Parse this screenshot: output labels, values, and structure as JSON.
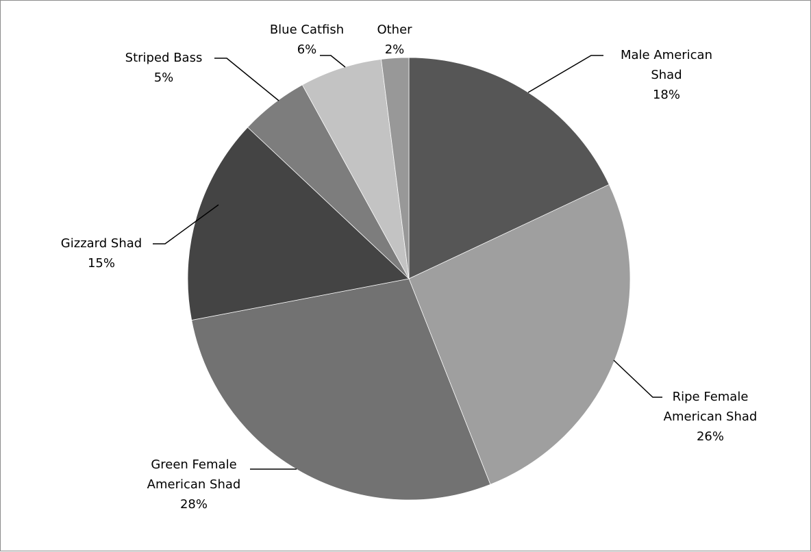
{
  "chart_data": {
    "type": "pie",
    "start_angle_deg": 0,
    "direction": "clockwise",
    "legend": "none",
    "slices": [
      {
        "name": "Male American Shad",
        "label_lines": [
          "Male American",
          "Shad"
        ],
        "value": 18,
        "value_label": "18%",
        "color": "#565656"
      },
      {
        "name": "Ripe Female American Shad",
        "label_lines": [
          "Ripe Female",
          "American Shad"
        ],
        "value": 26,
        "value_label": "26%",
        "color": "#9f9f9f"
      },
      {
        "name": "Green Female American Shad",
        "label_lines": [
          "Green Female",
          "American Shad"
        ],
        "value": 28,
        "value_label": "28%",
        "color": "#727272"
      },
      {
        "name": "Gizzard Shad",
        "label_lines": [
          "Gizzard Shad"
        ],
        "value": 15,
        "value_label": "15%",
        "color": "#444444"
      },
      {
        "name": "Striped Bass",
        "label_lines": [
          "Striped Bass"
        ],
        "value": 5,
        "value_label": "5%",
        "color": "#7d7d7d"
      },
      {
        "name": "Blue Catfish",
        "label_lines": [
          "Blue Catfish"
        ],
        "value": 6,
        "value_label": "6%",
        "color": "#c3c3c3"
      },
      {
        "name": "Other",
        "label_lines": [
          "Other"
        ],
        "value": 2,
        "value_label": "2%",
        "color": "#989898"
      }
    ]
  }
}
